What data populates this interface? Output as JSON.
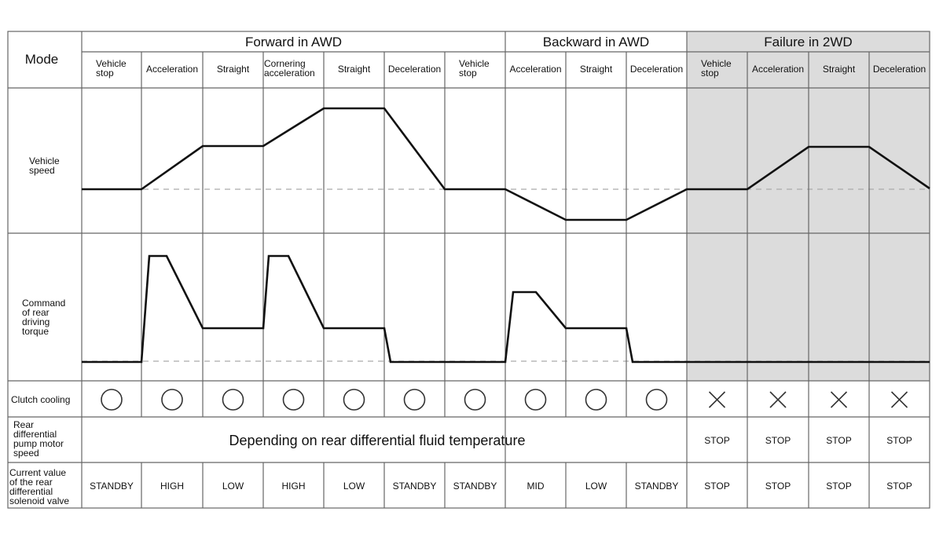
{
  "row_labels": {
    "mode": "Mode",
    "vehicle_speed": [
      "Vehicle",
      "speed"
    ],
    "rear_torque": [
      "Command",
      "of rear",
      "driving",
      "torque"
    ],
    "clutch_cooling": [
      "Clutch cooling"
    ],
    "pump_speed": [
      "Rear",
      "differential",
      "pump motor",
      "speed"
    ],
    "solenoid_current": [
      "Current value",
      "of the rear",
      "differential",
      "solenoid valve"
    ]
  },
  "groups": [
    {
      "label": "Forward in AWD",
      "span": [
        0,
        7
      ],
      "shaded": false
    },
    {
      "label": "Backward in AWD",
      "span": [
        7,
        10
      ],
      "shaded": false
    },
    {
      "label": "Failure in 2WD",
      "span": [
        10,
        14
      ],
      "shaded": true
    }
  ],
  "phases": [
    [
      "Vehicle",
      "stop"
    ],
    [
      "Acceleration"
    ],
    [
      "Straight"
    ],
    [
      "Cornering",
      "acceleration"
    ],
    [
      "Straight"
    ],
    [
      "Deceleration"
    ],
    [
      "Vehicle",
      "stop"
    ],
    [
      "Acceleration"
    ],
    [
      "Straight"
    ],
    [
      "Deceleration"
    ],
    [
      "Vehicle",
      "stop"
    ],
    [
      "Acceleration"
    ],
    [
      "Straight"
    ],
    [
      "Deceleration"
    ]
  ],
  "clutch_cooling": [
    "circle",
    "circle",
    "circle",
    "circle",
    "circle",
    "circle",
    "circle",
    "circle",
    "circle",
    "circle",
    "cross",
    "cross",
    "cross",
    "cross"
  ],
  "pump_speed": {
    "awd_text": "Depending on rear differential fluid temperature",
    "failure": [
      "STOP",
      "STOP",
      "STOP",
      "STOP"
    ]
  },
  "solenoid_current": [
    "STANDBY",
    "HIGH",
    "LOW",
    "HIGH",
    "LOW",
    "STANDBY",
    "STANDBY",
    "MID",
    "LOW",
    "STANDBY",
    "STOP",
    "STOP",
    "STOP",
    "STOP"
  ],
  "colors": {
    "line": "#111111",
    "grid": "#666666",
    "shade": "#dcdcdc",
    "dash": "#aaaaaa"
  }
}
